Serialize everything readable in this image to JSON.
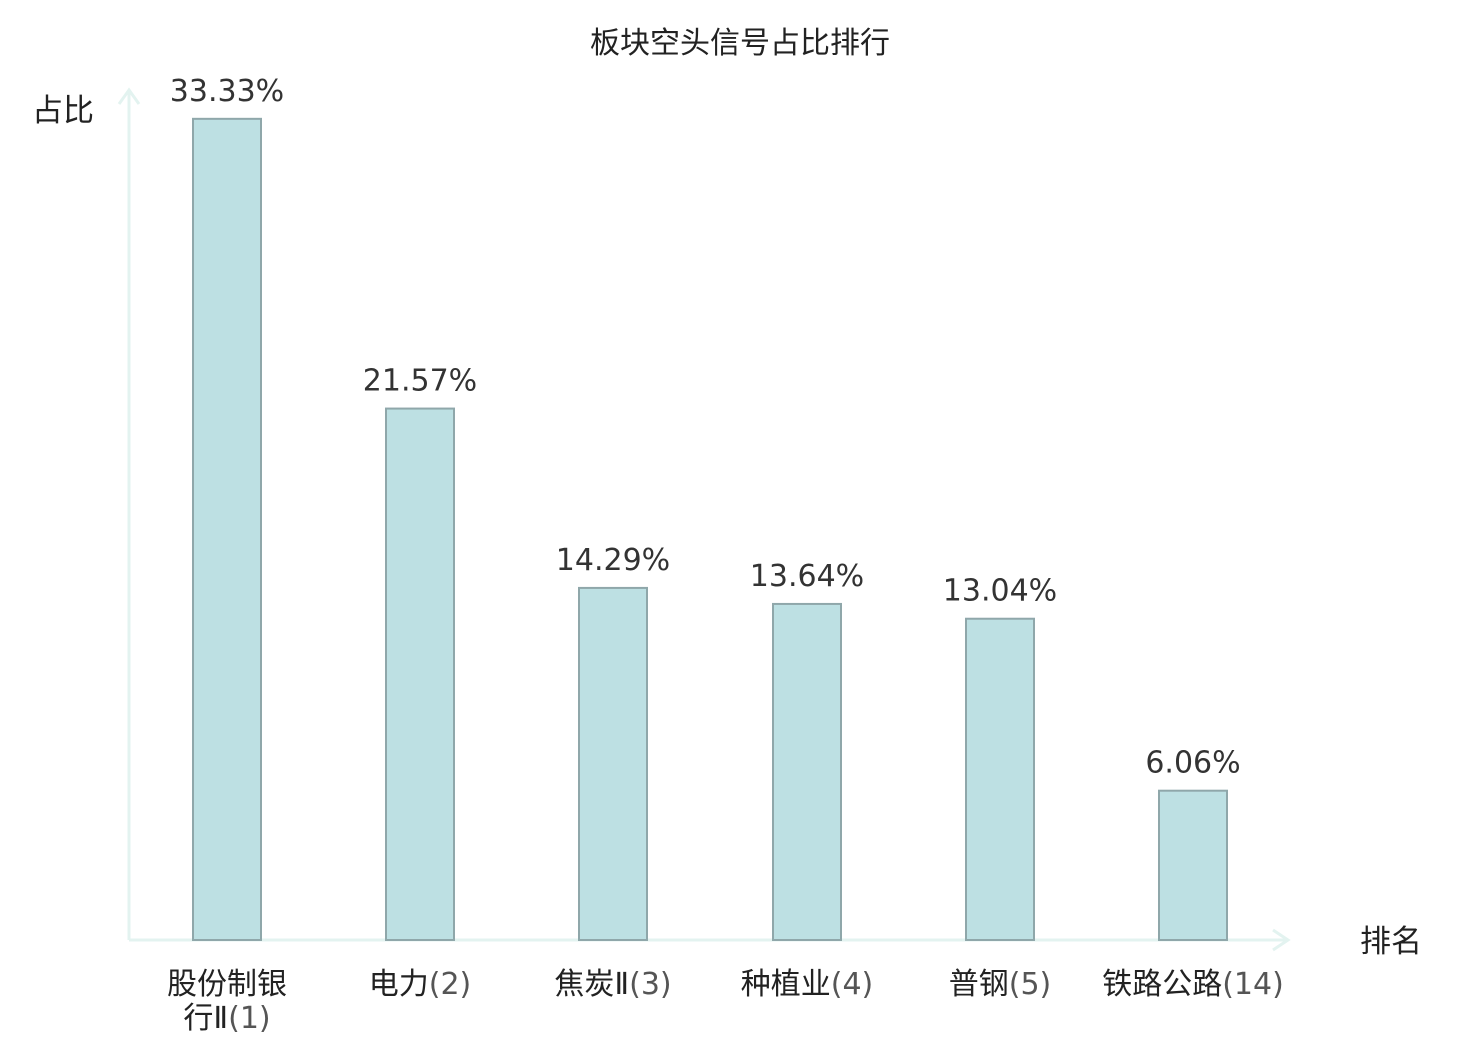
{
  "chart_data": {
    "type": "bar",
    "title": "板块空头信号占比排行",
    "xlabel": "排名",
    "ylabel": "占比",
    "categories": [
      {
        "name_lines": [
          "股份制银",
          "行Ⅱ"
        ],
        "rank": "(1)",
        "highlight": false
      },
      {
        "name_lines": [
          "电力"
        ],
        "rank": "(2)",
        "highlight": false
      },
      {
        "name_lines": [
          "焦炭Ⅱ"
        ],
        "rank": "(3)",
        "highlight": false
      },
      {
        "name_lines": [
          "种植业"
        ],
        "rank": "(4)",
        "highlight": false
      },
      {
        "name_lines": [
          "普钢"
        ],
        "rank": "(5)",
        "highlight": false
      },
      {
        "name_lines": [
          "铁路公路"
        ],
        "rank": "(14)",
        "highlight": true
      }
    ],
    "values": [
      33.33,
      21.57,
      14.29,
      13.64,
      13.04,
      6.06
    ],
    "value_labels": [
      "33.33%",
      "21.57%",
      "14.29%",
      "13.64%",
      "13.04%",
      "6.06%"
    ],
    "ylim": [
      0,
      34.5
    ],
    "grid": false,
    "legend": "none",
    "colors": {
      "bar_fill": "#bde0e3",
      "bar_stroke": "#8fa7aa",
      "axis": "#e3f3f0",
      "highlight_text": "#e0141e"
    }
  }
}
